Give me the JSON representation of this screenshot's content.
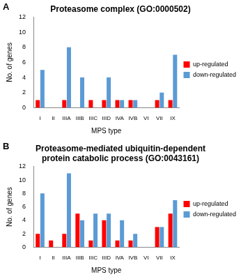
{
  "chart_data": [
    {
      "type": "bar",
      "panel_label": "A",
      "title": "Proteasome complex (GO:0000502)",
      "x_label": "MPS type",
      "y_label": "No. of genes",
      "categories": [
        "I",
        "II",
        "IIIA",
        "IIIB",
        "IIIC",
        "IIID",
        "IVA",
        "IVB",
        "VI",
        "VII",
        "IX"
      ],
      "series": [
        {
          "name": "up-regulated",
          "color": "#ff0000",
          "values": [
            1,
            0,
            1,
            0,
            1,
            1,
            1,
            1,
            0,
            1,
            1
          ]
        },
        {
          "name": "down-regulated",
          "color": "#5b9bd5",
          "values": [
            5,
            0,
            8,
            4,
            0,
            4,
            1,
            1,
            0,
            2,
            7
          ]
        }
      ],
      "ylim": [
        0,
        12
      ],
      "yticks": [
        0,
        2,
        4,
        6,
        8,
        10,
        12
      ],
      "grid": false,
      "legend": "right"
    },
    {
      "type": "bar",
      "panel_label": "B",
      "title": [
        "Proteasome-mediated ubiquitin-dependent",
        "protein catabolic process (GO:0043161)"
      ],
      "x_label": "MPS type",
      "y_label": "No. of genes",
      "categories": [
        "I",
        "II",
        "IIIA",
        "IIIB",
        "IIIC",
        "IIID",
        "IVA",
        "IVB",
        "VI",
        "VII",
        "IX"
      ],
      "series": [
        {
          "name": "up-regulated",
          "color": "#ff0000",
          "values": [
            2,
            1,
            2,
            5,
            1,
            4,
            1,
            1,
            0,
            3,
            5
          ]
        },
        {
          "name": "down-regulated",
          "color": "#5b9bd5",
          "values": [
            8,
            0,
            11,
            4,
            5,
            5,
            4,
            2,
            0,
            3,
            7
          ]
        }
      ],
      "ylim": [
        0,
        12
      ],
      "yticks": [
        0,
        2,
        4,
        6,
        8,
        10,
        12
      ],
      "grid": false,
      "legend": "right"
    }
  ]
}
